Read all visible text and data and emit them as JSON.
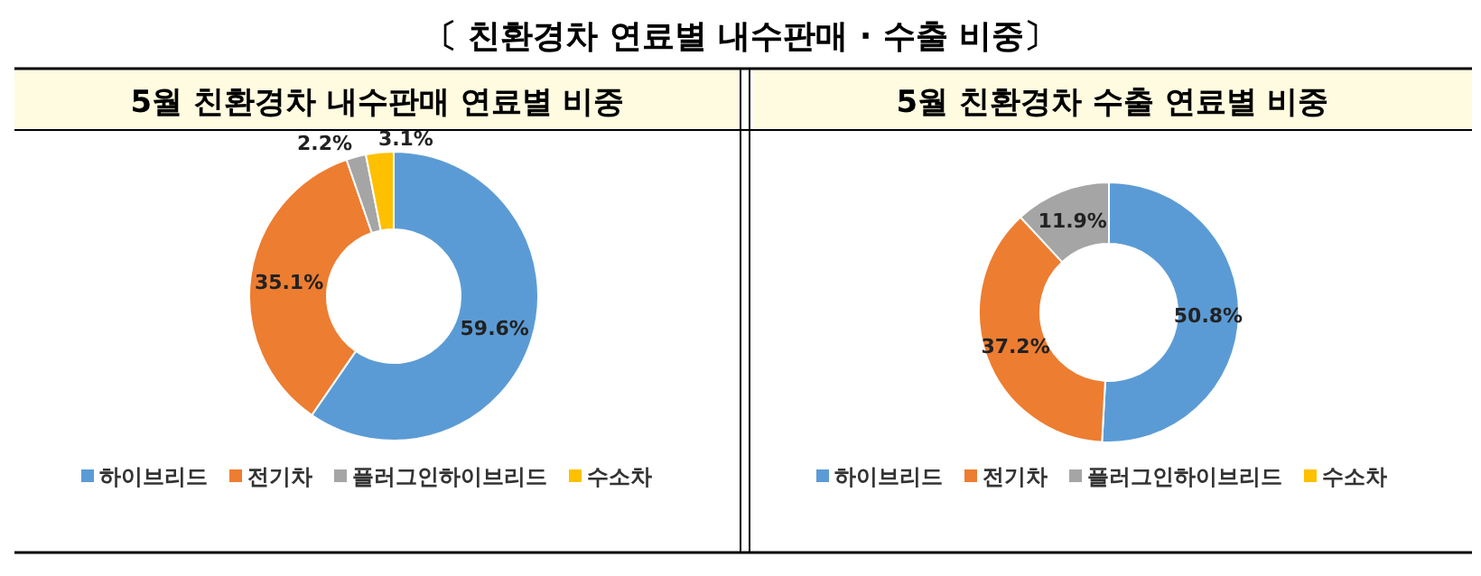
{
  "chart_data": [
    {
      "type": "donut",
      "title": "5월 친환경차 내수판매 연료별 비중",
      "annotations": [
        "〔 친환경차 연료별 내수판매 · 수출 비중〕"
      ],
      "categories": [
        "하이브리드",
        "전기차",
        "플러그인하이브리드",
        "수소차"
      ],
      "values": [
        59.6,
        35.1,
        2.2,
        3.1
      ],
      "value_labels": [
        "59.6%",
        "35.1%",
        "2.2%",
        "3.1%"
      ],
      "colors": [
        "#5b9bd5",
        "#ed7d31",
        "#a5a5a5",
        "#ffc000"
      ],
      "legend": "bottom"
    },
    {
      "type": "donut",
      "title": "5월 친환경차 수출 연료별 비중",
      "categories": [
        "하이브리드",
        "전기차",
        "플러그인하이브리드",
        "수소차"
      ],
      "values": [
        50.8,
        37.2,
        11.9,
        0
      ],
      "value_labels": [
        "50.8%",
        "37.2%",
        "11.9%",
        null
      ],
      "colors": [
        "#5b9bd5",
        "#ed7d31",
        "#a5a5a5",
        "#ffc000"
      ],
      "legend": "bottom"
    }
  ]
}
